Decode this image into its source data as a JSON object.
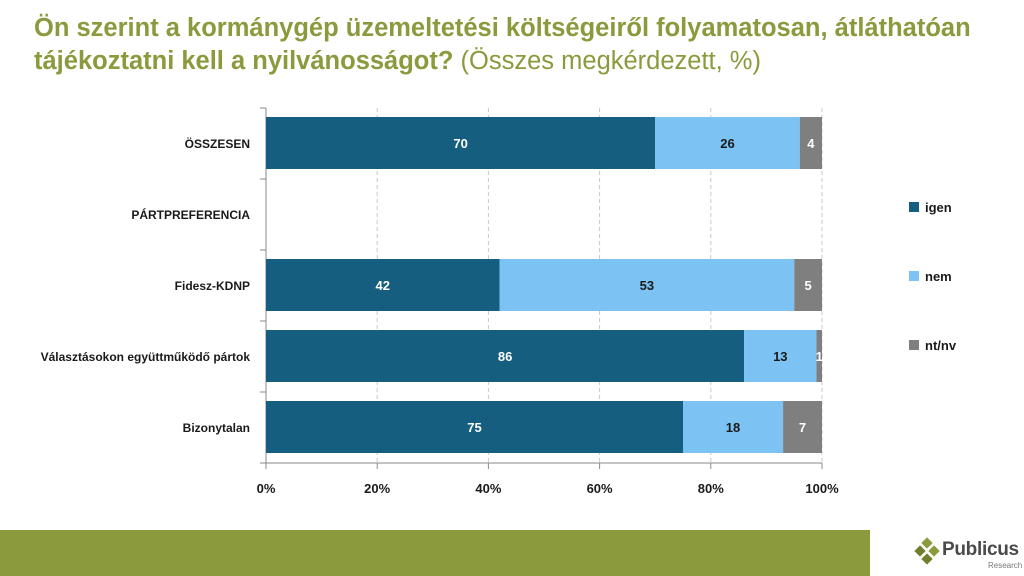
{
  "title": {
    "bold": "Ön szerint a kormánygép üzemeltetési költségeiről folyamatosan, átláthatóan tájékoztatni kell a nyilvánosságot?",
    "normal": " (Összes megkérdezett, %)"
  },
  "colors": {
    "title": "#8a9a3c",
    "igen": "#165e80",
    "nem": "#7cc3f4",
    "ntnv": "#7f7f7f",
    "footer": "#8a9a3c"
  },
  "chart_data": {
    "type": "bar",
    "orientation": "horizontal",
    "stacked": true,
    "categories": [
      "ÖSSZESEN",
      "PÁRTPREFERENCIA",
      "Fidesz-KDNP",
      "Választásokon együttműködő pártok",
      "Bizonytalan"
    ],
    "series": [
      {
        "name": "igen",
        "values": [
          70,
          null,
          42,
          86,
          75
        ]
      },
      {
        "name": "nem",
        "values": [
          26,
          null,
          53,
          13,
          18
        ]
      },
      {
        "name": "nt/nv",
        "values": [
          4,
          null,
          5,
          1,
          7
        ]
      }
    ],
    "xlim": [
      0,
      100
    ],
    "xticks": [
      "0%",
      "20%",
      "40%",
      "60%",
      "80%",
      "100%"
    ],
    "grid": "vertical-dashed",
    "legend_position": "right"
  },
  "logo": {
    "name": "Publicus",
    "sub": "Research"
  }
}
